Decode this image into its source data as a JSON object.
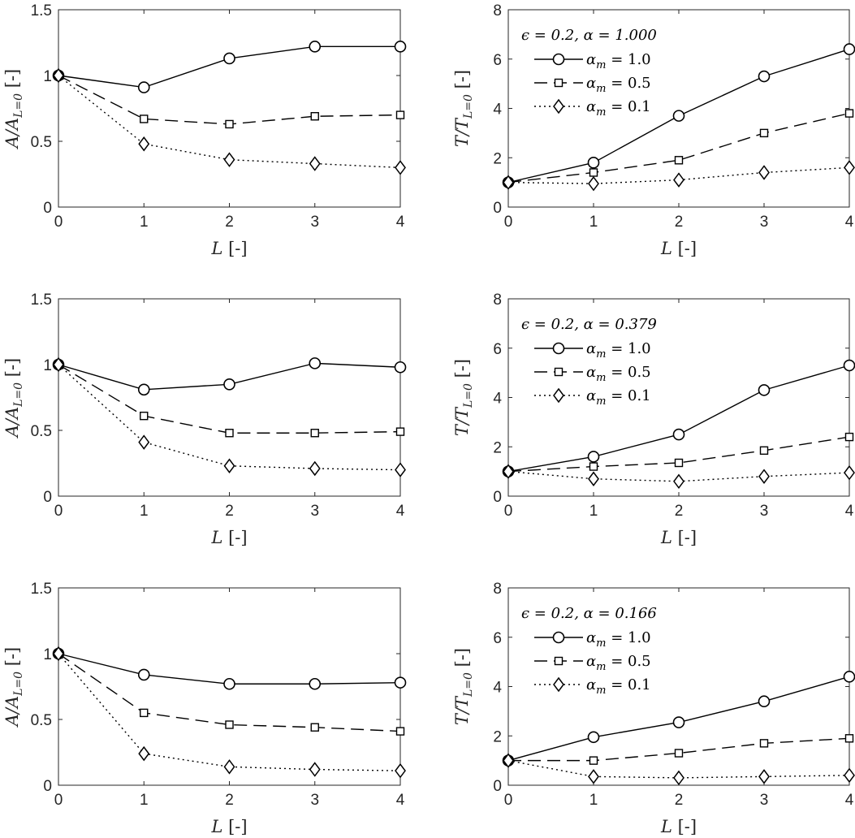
{
  "chart_data": [
    {
      "type": "line",
      "x": [
        0,
        1,
        2,
        3,
        4
      ],
      "xlabel": "L [-]",
      "ylabel": "A/A_{L=0} [-]",
      "xlim": [
        0,
        4
      ],
      "ylim": [
        0,
        1.5
      ],
      "xticks": [
        "0",
        "1",
        "2",
        "3",
        "4"
      ],
      "yticks": [
        "0",
        "0.5",
        "1",
        "1.5"
      ],
      "legend_title": "",
      "series": [
        {
          "values": [
            1.0,
            0.91,
            1.13,
            1.22,
            1.22
          ],
          "style": "solid",
          "marker": "circle"
        },
        {
          "values": [
            1.0,
            0.67,
            0.63,
            0.69,
            0.7
          ],
          "style": "dashed",
          "marker": "square"
        },
        {
          "values": [
            1.0,
            0.48,
            0.36,
            0.33,
            0.3
          ],
          "style": "dotted",
          "marker": "diamond"
        }
      ]
    },
    {
      "type": "line",
      "x": [
        0,
        1,
        2,
        3,
        4
      ],
      "xlabel": "L [-]",
      "ylabel": "T/T_{L=0} [-]",
      "xlim": [
        0,
        4
      ],
      "ylim": [
        0,
        8
      ],
      "xticks": [
        "0",
        "1",
        "2",
        "3",
        "4"
      ],
      "yticks": [
        "0",
        "2",
        "4",
        "6",
        "8"
      ],
      "legend_title": "ϵ = 0.2, α = 1.000",
      "legend_position": "top-left",
      "series": [
        {
          "name": "α_m = 1.0",
          "values": [
            1.0,
            1.8,
            3.7,
            5.3,
            6.4
          ],
          "style": "solid",
          "marker": "circle"
        },
        {
          "name": "α_m = 0.5",
          "values": [
            1.0,
            1.4,
            1.9,
            3.0,
            3.8
          ],
          "style": "dashed",
          "marker": "square"
        },
        {
          "name": "α_m = 0.1",
          "values": [
            1.0,
            0.95,
            1.1,
            1.4,
            1.6
          ],
          "style": "dotted",
          "marker": "diamond"
        }
      ]
    },
    {
      "type": "line",
      "x": [
        0,
        1,
        2,
        3,
        4
      ],
      "xlabel": "L [-]",
      "ylabel": "A/A_{L=0} [-]",
      "xlim": [
        0,
        4
      ],
      "ylim": [
        0,
        1.5
      ],
      "xticks": [
        "0",
        "1",
        "2",
        "3",
        "4"
      ],
      "yticks": [
        "0",
        "0.5",
        "1",
        "1.5"
      ],
      "legend_title": "",
      "series": [
        {
          "values": [
            1.0,
            0.81,
            0.85,
            1.01,
            0.98
          ],
          "style": "solid",
          "marker": "circle"
        },
        {
          "values": [
            1.0,
            0.61,
            0.48,
            0.48,
            0.49
          ],
          "style": "dashed",
          "marker": "square"
        },
        {
          "values": [
            1.0,
            0.41,
            0.23,
            0.21,
            0.2
          ],
          "style": "dotted",
          "marker": "diamond"
        }
      ]
    },
    {
      "type": "line",
      "x": [
        0,
        1,
        2,
        3,
        4
      ],
      "xlabel": "L [-]",
      "ylabel": "T/T_{L=0} [-]",
      "xlim": [
        0,
        4
      ],
      "ylim": [
        0,
        8
      ],
      "xticks": [
        "0",
        "1",
        "2",
        "3",
        "4"
      ],
      "yticks": [
        "0",
        "2",
        "4",
        "6",
        "8"
      ],
      "legend_title": "ϵ = 0.2, α = 0.379",
      "legend_position": "top-left",
      "series": [
        {
          "name": "α_m = 1.0",
          "values": [
            1.0,
            1.6,
            2.5,
            4.3,
            5.3
          ],
          "style": "solid",
          "marker": "circle"
        },
        {
          "name": "α_m = 0.5",
          "values": [
            1.0,
            1.2,
            1.35,
            1.85,
            2.4
          ],
          "style": "dashed",
          "marker": "square"
        },
        {
          "name": "α_m = 0.1",
          "values": [
            1.0,
            0.7,
            0.6,
            0.8,
            0.95
          ],
          "style": "dotted",
          "marker": "diamond"
        }
      ]
    },
    {
      "type": "line",
      "x": [
        0,
        1,
        2,
        3,
        4
      ],
      "xlabel": "L [-]",
      "ylabel": "A/A_{L=0} [-]",
      "xlim": [
        0,
        4
      ],
      "ylim": [
        0,
        1.5
      ],
      "xticks": [
        "0",
        "1",
        "2",
        "3",
        "4"
      ],
      "yticks": [
        "0",
        "0.5",
        "1",
        "1.5"
      ],
      "legend_title": "",
      "series": [
        {
          "values": [
            1.0,
            0.84,
            0.77,
            0.77,
            0.78
          ],
          "style": "solid",
          "marker": "circle"
        },
        {
          "values": [
            1.0,
            0.55,
            0.46,
            0.44,
            0.41
          ],
          "style": "dashed",
          "marker": "square"
        },
        {
          "values": [
            1.0,
            0.24,
            0.14,
            0.12,
            0.11
          ],
          "style": "dotted",
          "marker": "diamond"
        }
      ]
    },
    {
      "type": "line",
      "x": [
        0,
        1,
        2,
        3,
        4
      ],
      "xlabel": "L [-]",
      "ylabel": "T/T_{L=0} [-]",
      "xlim": [
        0,
        4
      ],
      "ylim": [
        0,
        8
      ],
      "xticks": [
        "0",
        "1",
        "2",
        "3",
        "4"
      ],
      "yticks": [
        "0",
        "2",
        "4",
        "6",
        "8"
      ],
      "legend_title": "ϵ = 0.2, α = 0.166",
      "legend_position": "top-left",
      "series": [
        {
          "name": "α_m = 1.0",
          "values": [
            1.0,
            1.95,
            2.55,
            3.4,
            4.4
          ],
          "style": "solid",
          "marker": "circle"
        },
        {
          "name": "α_m = 0.5",
          "values": [
            1.0,
            1.0,
            1.3,
            1.7,
            1.9
          ],
          "style": "dashed",
          "marker": "square"
        },
        {
          "name": "α_m = 0.1",
          "values": [
            1.0,
            0.35,
            0.3,
            0.35,
            0.4
          ],
          "style": "dotted",
          "marker": "diamond"
        }
      ]
    }
  ]
}
